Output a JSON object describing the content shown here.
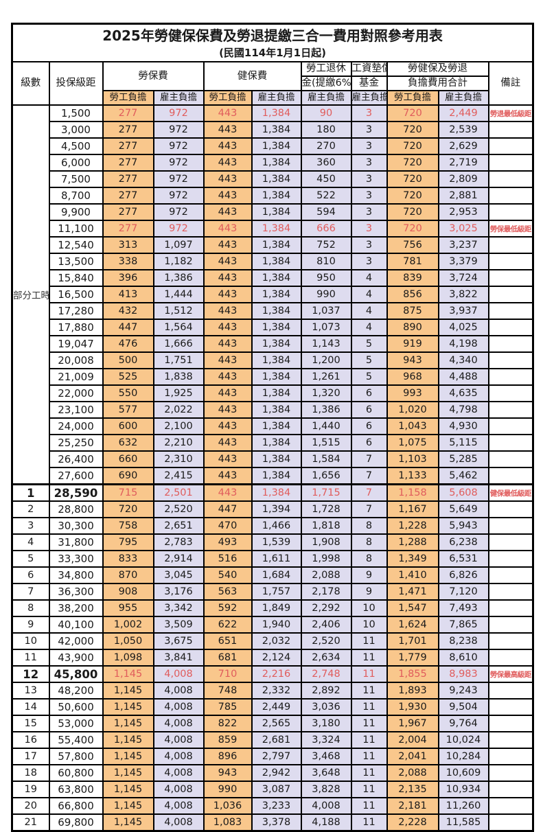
{
  "title": "2025年勞健保保費及勞退提繳三合一費用對照參考用表",
  "subtitle": "(民國114年1月1日起)",
  "colors": {
    "employee_cell_bg": "#F9C78C",
    "employer_cell_bg": "#DEDCEF",
    "highlight_text": "#E05C5C",
    "border": "#000000"
  },
  "header": {
    "level": "級數",
    "bracket": "投保級距",
    "labor_insurance": "勞保費",
    "health_insurance": "健保費",
    "pension_line1": "勞工退休",
    "pension_line2": "金(提繳6%)",
    "wage_fund_line1": "工資墊償",
    "wage_fund_line2": "基金",
    "total_line1": "勞健保及勞退",
    "total_line2": "負擔費用合計",
    "remark": "備註",
    "employee": "勞工負擔",
    "employer": "雇主負擔"
  },
  "group": {
    "label": "部分工時",
    "span": 23
  },
  "rows": [
    {
      "level": "",
      "bracket": "1,500",
      "cells": [
        "277",
        "972",
        "443",
        "1,384",
        "90",
        "3",
        "720",
        "2,449"
      ],
      "remark": "勞退最低級距",
      "hl": true,
      "bold": false,
      "sep": false
    },
    {
      "level": "",
      "bracket": "3,000",
      "cells": [
        "277",
        "972",
        "443",
        "1,384",
        "180",
        "3",
        "720",
        "2,539"
      ],
      "remark": "",
      "hl": false,
      "bold": false,
      "sep": false
    },
    {
      "level": "",
      "bracket": "4,500",
      "cells": [
        "277",
        "972",
        "443",
        "1,384",
        "270",
        "3",
        "720",
        "2,629"
      ],
      "remark": "",
      "hl": false,
      "bold": false,
      "sep": false
    },
    {
      "level": "",
      "bracket": "6,000",
      "cells": [
        "277",
        "972",
        "443",
        "1,384",
        "360",
        "3",
        "720",
        "2,719"
      ],
      "remark": "",
      "hl": false,
      "bold": false,
      "sep": false
    },
    {
      "level": "",
      "bracket": "7,500",
      "cells": [
        "277",
        "972",
        "443",
        "1,384",
        "450",
        "3",
        "720",
        "2,809"
      ],
      "remark": "",
      "hl": false,
      "bold": false,
      "sep": false
    },
    {
      "level": "",
      "bracket": "8,700",
      "cells": [
        "277",
        "972",
        "443",
        "1,384",
        "522",
        "3",
        "720",
        "2,881"
      ],
      "remark": "",
      "hl": false,
      "bold": false,
      "sep": false
    },
    {
      "level": "",
      "bracket": "9,900",
      "cells": [
        "277",
        "972",
        "443",
        "1,384",
        "594",
        "3",
        "720",
        "2,953"
      ],
      "remark": "",
      "hl": false,
      "bold": false,
      "sep": false
    },
    {
      "level": "",
      "bracket": "11,100",
      "cells": [
        "277",
        "972",
        "443",
        "1,384",
        "666",
        "3",
        "720",
        "3,025"
      ],
      "remark": "勞保最低級距",
      "hl": true,
      "bold": false,
      "sep": false
    },
    {
      "level": "",
      "bracket": "12,540",
      "cells": [
        "313",
        "1,097",
        "443",
        "1,384",
        "752",
        "3",
        "756",
        "3,237"
      ],
      "remark": "",
      "hl": false,
      "bold": false,
      "sep": false
    },
    {
      "level": "",
      "bracket": "13,500",
      "cells": [
        "338",
        "1,182",
        "443",
        "1,384",
        "810",
        "3",
        "781",
        "3,379"
      ],
      "remark": "",
      "hl": false,
      "bold": false,
      "sep": false
    },
    {
      "level": "",
      "bracket": "15,840",
      "cells": [
        "396",
        "1,386",
        "443",
        "1,384",
        "950",
        "4",
        "839",
        "3,724"
      ],
      "remark": "",
      "hl": false,
      "bold": false,
      "sep": false
    },
    {
      "level": "",
      "bracket": "16,500",
      "cells": [
        "413",
        "1,444",
        "443",
        "1,384",
        "990",
        "4",
        "856",
        "3,822"
      ],
      "remark": "",
      "hl": false,
      "bold": false,
      "sep": false
    },
    {
      "level": "",
      "bracket": "17,280",
      "cells": [
        "432",
        "1,512",
        "443",
        "1,384",
        "1,037",
        "4",
        "875",
        "3,937"
      ],
      "remark": "",
      "hl": false,
      "bold": false,
      "sep": false
    },
    {
      "level": "",
      "bracket": "17,880",
      "cells": [
        "447",
        "1,564",
        "443",
        "1,384",
        "1,073",
        "4",
        "890",
        "4,025"
      ],
      "remark": "",
      "hl": false,
      "bold": false,
      "sep": false
    },
    {
      "level": "",
      "bracket": "19,047",
      "cells": [
        "476",
        "1,666",
        "443",
        "1,384",
        "1,143",
        "5",
        "919",
        "4,198"
      ],
      "remark": "",
      "hl": false,
      "bold": false,
      "sep": false
    },
    {
      "level": "",
      "bracket": "20,008",
      "cells": [
        "500",
        "1,751",
        "443",
        "1,384",
        "1,200",
        "5",
        "943",
        "4,340"
      ],
      "remark": "",
      "hl": false,
      "bold": false,
      "sep": false
    },
    {
      "level": "",
      "bracket": "21,009",
      "cells": [
        "525",
        "1,838",
        "443",
        "1,384",
        "1,261",
        "5",
        "968",
        "4,488"
      ],
      "remark": "",
      "hl": false,
      "bold": false,
      "sep": false
    },
    {
      "level": "",
      "bracket": "22,000",
      "cells": [
        "550",
        "1,925",
        "443",
        "1,384",
        "1,320",
        "6",
        "993",
        "4,635"
      ],
      "remark": "",
      "hl": false,
      "bold": false,
      "sep": false
    },
    {
      "level": "",
      "bracket": "23,100",
      "cells": [
        "577",
        "2,022",
        "443",
        "1,384",
        "1,386",
        "6",
        "1,020",
        "4,798"
      ],
      "remark": "",
      "hl": false,
      "bold": false,
      "sep": false
    },
    {
      "level": "",
      "bracket": "24,000",
      "cells": [
        "600",
        "2,100",
        "443",
        "1,384",
        "1,440",
        "6",
        "1,043",
        "4,930"
      ],
      "remark": "",
      "hl": false,
      "bold": false,
      "sep": false
    },
    {
      "level": "",
      "bracket": "25,250",
      "cells": [
        "632",
        "2,210",
        "443",
        "1,384",
        "1,515",
        "6",
        "1,075",
        "5,115"
      ],
      "remark": "",
      "hl": false,
      "bold": false,
      "sep": false
    },
    {
      "level": "",
      "bracket": "26,400",
      "cells": [
        "660",
        "2,310",
        "443",
        "1,384",
        "1,584",
        "7",
        "1,103",
        "5,285"
      ],
      "remark": "",
      "hl": false,
      "bold": false,
      "sep": false
    },
    {
      "level": "",
      "bracket": "27,600",
      "cells": [
        "690",
        "2,415",
        "443",
        "1,384",
        "1,656",
        "7",
        "1,133",
        "5,462"
      ],
      "remark": "",
      "hl": false,
      "bold": false,
      "sep": false
    },
    {
      "level": "1",
      "bracket": "28,590",
      "cells": [
        "715",
        "2,501",
        "443",
        "1,384",
        "1,715",
        "7",
        "1,158",
        "5,608"
      ],
      "remark": "健保最低級距",
      "hl": true,
      "bold": true,
      "sep": true
    },
    {
      "level": "2",
      "bracket": "28,800",
      "cells": [
        "720",
        "2,520",
        "447",
        "1,394",
        "1,728",
        "7",
        "1,167",
        "5,649"
      ],
      "remark": "",
      "hl": false,
      "bold": false,
      "sep": false
    },
    {
      "level": "3",
      "bracket": "30,300",
      "cells": [
        "758",
        "2,651",
        "470",
        "1,466",
        "1,818",
        "8",
        "1,228",
        "5,943"
      ],
      "remark": "",
      "hl": false,
      "bold": false,
      "sep": false
    },
    {
      "level": "4",
      "bracket": "31,800",
      "cells": [
        "795",
        "2,783",
        "493",
        "1,539",
        "1,908",
        "8",
        "1,288",
        "6,238"
      ],
      "remark": "",
      "hl": false,
      "bold": false,
      "sep": false
    },
    {
      "level": "5",
      "bracket": "33,300",
      "cells": [
        "833",
        "2,914",
        "516",
        "1,611",
        "1,998",
        "8",
        "1,349",
        "6,531"
      ],
      "remark": "",
      "hl": false,
      "bold": false,
      "sep": false
    },
    {
      "level": "6",
      "bracket": "34,800",
      "cells": [
        "870",
        "3,045",
        "540",
        "1,684",
        "2,088",
        "9",
        "1,410",
        "6,826"
      ],
      "remark": "",
      "hl": false,
      "bold": false,
      "sep": false
    },
    {
      "level": "7",
      "bracket": "36,300",
      "cells": [
        "908",
        "3,176",
        "563",
        "1,757",
        "2,178",
        "9",
        "1,471",
        "7,120"
      ],
      "remark": "",
      "hl": false,
      "bold": false,
      "sep": false
    },
    {
      "level": "8",
      "bracket": "38,200",
      "cells": [
        "955",
        "3,342",
        "592",
        "1,849",
        "2,292",
        "10",
        "1,547",
        "7,493"
      ],
      "remark": "",
      "hl": false,
      "bold": false,
      "sep": false
    },
    {
      "level": "9",
      "bracket": "40,100",
      "cells": [
        "1,002",
        "3,509",
        "622",
        "1,940",
        "2,406",
        "10",
        "1,624",
        "7,865"
      ],
      "remark": "",
      "hl": false,
      "bold": false,
      "sep": false
    },
    {
      "level": "10",
      "bracket": "42,000",
      "cells": [
        "1,050",
        "3,675",
        "651",
        "2,032",
        "2,520",
        "11",
        "1,701",
        "8,238"
      ],
      "remark": "",
      "hl": false,
      "bold": false,
      "sep": false
    },
    {
      "level": "11",
      "bracket": "43,900",
      "cells": [
        "1,098",
        "3,841",
        "681",
        "2,124",
        "2,634",
        "11",
        "1,779",
        "8,610"
      ],
      "remark": "",
      "hl": false,
      "bold": false,
      "sep": false
    },
    {
      "level": "12",
      "bracket": "45,800",
      "cells": [
        "1,145",
        "4,008",
        "710",
        "2,216",
        "2,748",
        "11",
        "1,855",
        "8,983"
      ],
      "remark": "勞保最高級距",
      "hl": true,
      "bold": true,
      "sep": false
    },
    {
      "level": "13",
      "bracket": "48,200",
      "cells": [
        "1,145",
        "4,008",
        "748",
        "2,332",
        "2,892",
        "11",
        "1,893",
        "9,243"
      ],
      "remark": "",
      "hl": false,
      "bold": false,
      "sep": false
    },
    {
      "level": "14",
      "bracket": "50,600",
      "cells": [
        "1,145",
        "4,008",
        "785",
        "2,449",
        "3,036",
        "11",
        "1,930",
        "9,504"
      ],
      "remark": "",
      "hl": false,
      "bold": false,
      "sep": false
    },
    {
      "level": "15",
      "bracket": "53,000",
      "cells": [
        "1,145",
        "4,008",
        "822",
        "2,565",
        "3,180",
        "11",
        "1,967",
        "9,764"
      ],
      "remark": "",
      "hl": false,
      "bold": false,
      "sep": false
    },
    {
      "level": "16",
      "bracket": "55,400",
      "cells": [
        "1,145",
        "4,008",
        "859",
        "2,681",
        "3,324",
        "11",
        "2,004",
        "10,024"
      ],
      "remark": "",
      "hl": false,
      "bold": false,
      "sep": false
    },
    {
      "level": "17",
      "bracket": "57,800",
      "cells": [
        "1,145",
        "4,008",
        "896",
        "2,797",
        "3,468",
        "11",
        "2,041",
        "10,284"
      ],
      "remark": "",
      "hl": false,
      "bold": false,
      "sep": false
    },
    {
      "level": "18",
      "bracket": "60,800",
      "cells": [
        "1,145",
        "4,008",
        "943",
        "2,942",
        "3,648",
        "11",
        "2,088",
        "10,609"
      ],
      "remark": "",
      "hl": false,
      "bold": false,
      "sep": false
    },
    {
      "level": "19",
      "bracket": "63,800",
      "cells": [
        "1,145",
        "4,008",
        "990",
        "3,087",
        "3,828",
        "11",
        "2,135",
        "10,934"
      ],
      "remark": "",
      "hl": false,
      "bold": false,
      "sep": false
    },
    {
      "level": "20",
      "bracket": "66,800",
      "cells": [
        "1,145",
        "4,008",
        "1,036",
        "3,233",
        "4,008",
        "11",
        "2,181",
        "11,260"
      ],
      "remark": "",
      "hl": false,
      "bold": false,
      "sep": false
    },
    {
      "level": "21",
      "bracket": "69,800",
      "cells": [
        "1,145",
        "4,008",
        "1,083",
        "3,378",
        "4,188",
        "11",
        "2,228",
        "11,585"
      ],
      "remark": "",
      "hl": false,
      "bold": false,
      "sep": false
    }
  ]
}
